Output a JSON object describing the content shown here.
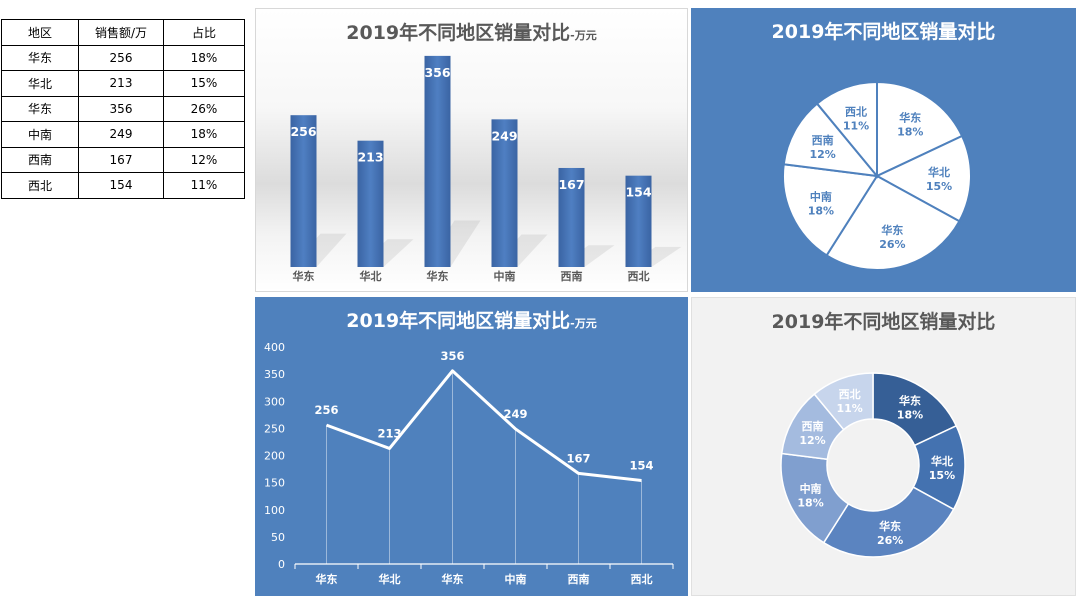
{
  "table": {
    "headers": [
      "地区",
      "销售额/万",
      "占比"
    ],
    "rows": [
      [
        "华东",
        "256",
        "18%"
      ],
      [
        "华北",
        "213",
        "15%"
      ],
      [
        "华东",
        "356",
        "26%"
      ],
      [
        "中南",
        "249",
        "18%"
      ],
      [
        "西南",
        "167",
        "12%"
      ],
      [
        "西北",
        "154",
        "11%"
      ]
    ]
  },
  "colors": {
    "bar_fill": "#4a76b8",
    "pie_panel": "#4f81bd",
    "donut_slices": [
      "#365f96",
      "#4472b0",
      "#5b84c0",
      "#809fcf",
      "#a4bbdf",
      "#c7d5ec"
    ]
  },
  "chart_data": [
    {
      "type": "bar",
      "title": "2019年不同地区销量对比",
      "title_suffix": "-万元",
      "categories": [
        "华东",
        "华北",
        "华东",
        "中南",
        "西南",
        "西北"
      ],
      "values": [
        256,
        213,
        356,
        249,
        167,
        154
      ],
      "data_labels": [
        "256",
        "213",
        "356",
        "249",
        "167",
        "154"
      ],
      "ylim": [
        0,
        430
      ],
      "grid": false,
      "legend": "none"
    },
    {
      "type": "pie",
      "title": "2019年不同地区销量对比",
      "categories": [
        "华东",
        "华北",
        "华东",
        "中南",
        "西南",
        "西北"
      ],
      "values": [
        18,
        15,
        26,
        18,
        12,
        11
      ],
      "data_labels": [
        "18%",
        "15%",
        "26%",
        "18%",
        "12%",
        "11%"
      ],
      "legend": "none"
    },
    {
      "type": "line",
      "title": "2019年不同地区销量对比",
      "title_suffix": "-万元",
      "categories": [
        "华东",
        "华北",
        "华东",
        "中南",
        "西南",
        "西北"
      ],
      "values": [
        256,
        213,
        356,
        249,
        167,
        154
      ],
      "data_labels": [
        "256",
        "213",
        "356",
        "249",
        "167",
        "154"
      ],
      "ylim": [
        0,
        400
      ],
      "yticks": [
        "0",
        "50",
        "100",
        "150",
        "200",
        "250",
        "300",
        "350",
        "400"
      ],
      "grid": false,
      "legend": "none"
    },
    {
      "type": "pie",
      "subtype": "donut",
      "title": "2019年不同地区销量对比",
      "categories": [
        "华东",
        "华北",
        "华东",
        "中南",
        "西南",
        "西北"
      ],
      "values": [
        18,
        15,
        26,
        18,
        12,
        11
      ],
      "data_labels": [
        "18%",
        "15%",
        "26%",
        "18%",
        "12%",
        "11%"
      ],
      "legend": "none"
    }
  ]
}
